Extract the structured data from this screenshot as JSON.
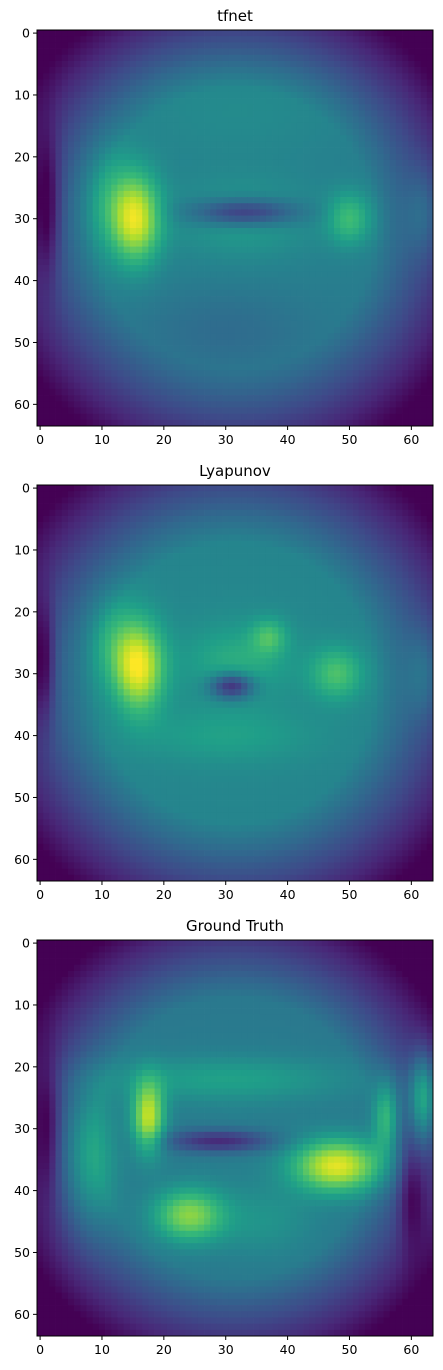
{
  "chart_data": [
    {
      "type": "heatmap",
      "title": "tfnet",
      "xlim": [
        -0.5,
        63.5
      ],
      "ylim": [
        63.5,
        -0.5
      ],
      "xticks": [
        0,
        10,
        20,
        30,
        40,
        50,
        60
      ],
      "yticks": [
        0,
        10,
        20,
        30,
        40,
        50,
        60
      ],
      "colormap": "viridis",
      "background": 0.42,
      "vignette": 0.85,
      "blobs": [
        {
          "x": 15.5,
          "y": 30,
          "sx": 2.8,
          "sy": 5,
          "a": 0.5
        },
        {
          "x": 11,
          "y": 27,
          "sx": 3,
          "sy": 6,
          "a": 0.15
        },
        {
          "x": 33,
          "y": 29,
          "sx": 6,
          "sy": 1.6,
          "a": -0.35
        },
        {
          "x": 33,
          "y": 30,
          "sx": 8,
          "sy": 4,
          "a": 0.12
        },
        {
          "x": 50,
          "y": 30,
          "sx": 2.5,
          "sy": 3,
          "a": 0.25
        },
        {
          "x": 62,
          "y": 29,
          "sx": 2,
          "sy": 5,
          "a": 0.12
        },
        {
          "x": 1,
          "y": 28,
          "sx": 1.5,
          "sy": 8,
          "a": -0.25
        },
        {
          "x": 30,
          "y": 48,
          "sx": 10,
          "sy": 5,
          "a": -0.08
        },
        {
          "x": 32,
          "y": 12,
          "sx": 15,
          "sy": 6,
          "a": 0.05
        }
      ]
    },
    {
      "type": "heatmap",
      "title": "Lyapunov",
      "xlim": [
        -0.5,
        63.5
      ],
      "ylim": [
        63.5,
        -0.5
      ],
      "xticks": [
        0,
        10,
        20,
        30,
        40,
        50,
        60
      ],
      "yticks": [
        0,
        10,
        20,
        30,
        40,
        50,
        60
      ],
      "colormap": "viridis",
      "background": 0.45,
      "vignette": 0.85,
      "blobs": [
        {
          "x": 16,
          "y": 29,
          "sx": 2.8,
          "sy": 5,
          "a": 0.5
        },
        {
          "x": 12,
          "y": 25,
          "sx": 3,
          "sy": 5,
          "a": 0.15
        },
        {
          "x": 31,
          "y": 32,
          "sx": 2.5,
          "sy": 1.5,
          "a": -0.4
        },
        {
          "x": 32,
          "y": 28,
          "sx": 6,
          "sy": 4,
          "a": 0.15
        },
        {
          "x": 37,
          "y": 24,
          "sx": 2,
          "sy": 2,
          "a": 0.2
        },
        {
          "x": 48,
          "y": 30,
          "sx": 3,
          "sy": 3,
          "a": 0.25
        },
        {
          "x": 62,
          "y": 30,
          "sx": 2,
          "sy": 5,
          "a": 0.12
        },
        {
          "x": 0.5,
          "y": 28,
          "sx": 1.2,
          "sy": 7,
          "a": -0.25
        },
        {
          "x": 30,
          "y": 40,
          "sx": 10,
          "sy": 3,
          "a": 0.1
        }
      ]
    },
    {
      "type": "heatmap",
      "title": "Ground Truth",
      "xlim": [
        -0.5,
        63.5
      ],
      "ylim": [
        63.5,
        -0.5
      ],
      "xticks": [
        0,
        10,
        20,
        30,
        40,
        50,
        60
      ],
      "yticks": [
        0,
        10,
        20,
        30,
        40,
        50,
        60
      ],
      "colormap": "viridis",
      "background": 0.4,
      "vignette": 0.9,
      "blobs": [
        {
          "x": 17.5,
          "y": 28,
          "sx": 1.8,
          "sy": 4,
          "a": 0.5
        },
        {
          "x": 48,
          "y": 36,
          "sx": 5,
          "sy": 3,
          "a": 0.55
        },
        {
          "x": 62,
          "y": 25,
          "sx": 1.6,
          "sy": 5,
          "a": 0.4
        },
        {
          "x": 56,
          "y": 28,
          "sx": 1.4,
          "sy": 4,
          "a": 0.3
        },
        {
          "x": 24,
          "y": 44,
          "sx": 4,
          "sy": 3,
          "a": 0.4
        },
        {
          "x": 29,
          "y": 32,
          "sx": 6,
          "sy": 1.3,
          "a": -0.3
        },
        {
          "x": 8,
          "y": 35,
          "sx": 3,
          "sy": 8,
          "a": 0.2
        },
        {
          "x": 30,
          "y": 22,
          "sx": 14,
          "sy": 2.5,
          "a": 0.15
        },
        {
          "x": 1,
          "y": 30,
          "sx": 1.5,
          "sy": 8,
          "a": -0.2
        },
        {
          "x": 60,
          "y": 40,
          "sx": 1.5,
          "sy": 6,
          "a": -0.2
        },
        {
          "x": 36,
          "y": 45,
          "sx": 6,
          "sy": 4,
          "a": 0.1
        }
      ]
    }
  ]
}
